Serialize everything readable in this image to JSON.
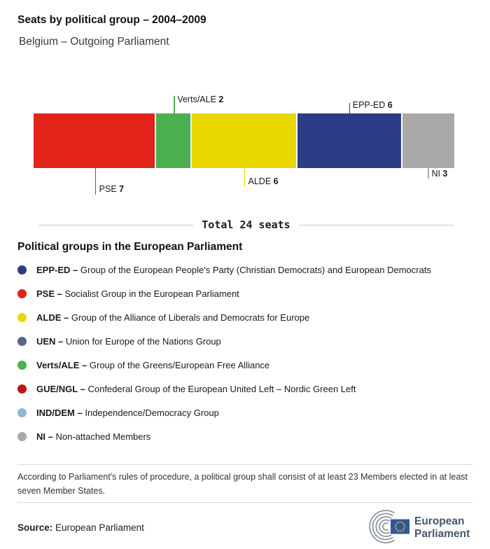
{
  "header": {
    "title": "Seats by political group – 2004–2009",
    "subtitle": "Belgium – Outgoing Parliament"
  },
  "chart_data": {
    "type": "bar",
    "variant": "horizontal-stacked-single-bar",
    "title": "Seats by political group – 2004–2009",
    "subtitle": "Belgium – Outgoing Parliament",
    "total": 24,
    "total_label": "Total 24 seats",
    "segments": [
      {
        "name": "PSE",
        "value": 7,
        "color": "#e2231a",
        "label_position": "below"
      },
      {
        "name": "Verts/ALE",
        "value": 2,
        "color": "#4caf50",
        "label_position": "above"
      },
      {
        "name": "ALDE",
        "value": 6,
        "color": "#e9d800",
        "label_position": "below"
      },
      {
        "name": "EPP-ED",
        "value": 6,
        "color": "#2c3c86",
        "label_position": "above"
      },
      {
        "name": "NI",
        "value": 3,
        "color": "#a9a9a7",
        "label_position": "below"
      }
    ]
  },
  "legend": {
    "heading": "Political groups in the European Parliament",
    "items": [
      {
        "abbr": "EPP-ED –",
        "desc": "Group of the European People's Party (Christian Democrats) and European Democrats",
        "color": "#2c3c86"
      },
      {
        "abbr": "PSE –",
        "desc": "Socialist Group in the European Parliament",
        "color": "#e2231a"
      },
      {
        "abbr": "ALDE –",
        "desc": "Group of the Alliance of Liberals and Democrats for Europe",
        "color": "#e9d800"
      },
      {
        "abbr": "UEN –",
        "desc": "Union for Europe of the Nations Group",
        "color": "#56688e"
      },
      {
        "abbr": "Verts/ALE –",
        "desc": "Group of the Greens/European Free Alliance",
        "color": "#4caf50"
      },
      {
        "abbr": "GUE/NGL –",
        "desc": "Confederal Group of the European United Left – Nordic Green Left",
        "color": "#c0141c"
      },
      {
        "abbr": "IND/DEM –",
        "desc": "Independence/Democracy Group",
        "color": "#8fb6cd"
      },
      {
        "abbr": "NI –",
        "desc": "Non-attached Members",
        "color": "#a9a9a7"
      }
    ]
  },
  "footnote": "According to Parliament's rules of procedure, a political group shall consist of at least 23 Members elected in at least seven Member States.",
  "source": {
    "label": "Source:",
    "value": "European Parliament"
  },
  "logo": {
    "line1": "European",
    "line2": "Parliament",
    "text_color": "#44586a",
    "flag_blue": "#2e56a5",
    "star_yellow": "#ffd617",
    "arc_gray": "#8b959c"
  }
}
